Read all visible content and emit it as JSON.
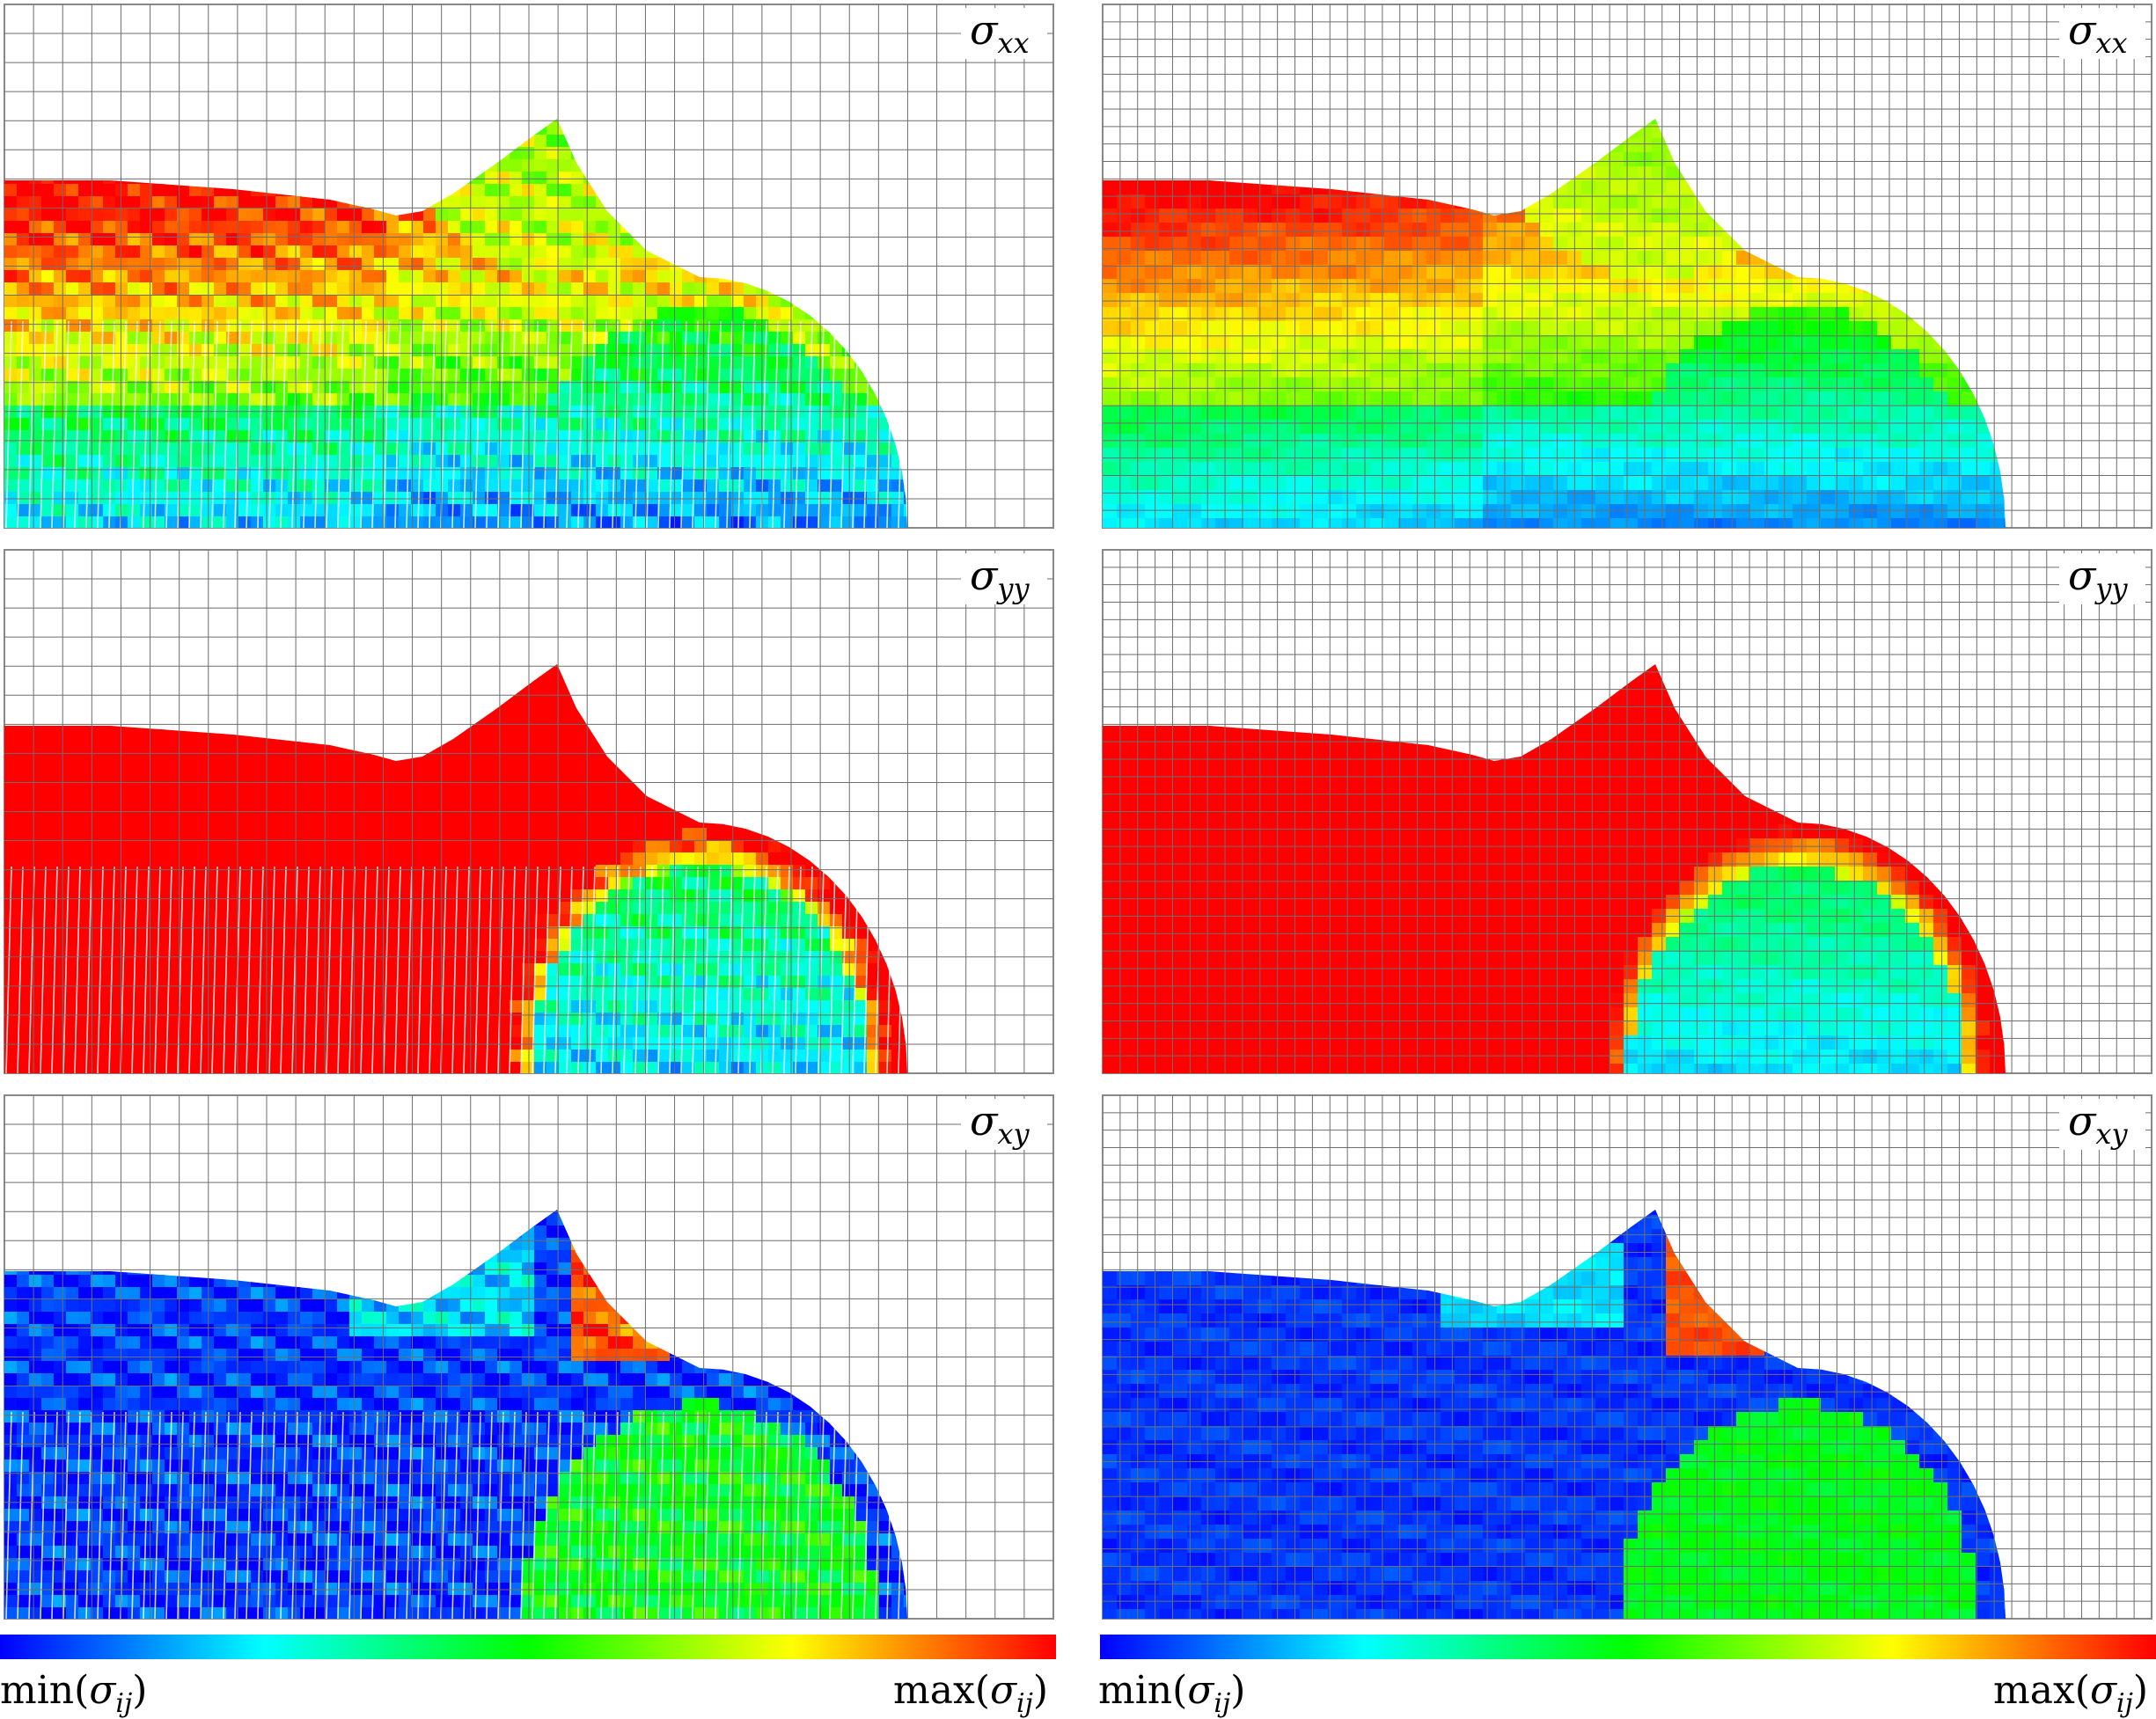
{
  "panels": [
    {
      "column": "left",
      "row": 0,
      "component": "xx",
      "label": "σ",
      "sub": "xx",
      "style": "noisy"
    },
    {
      "column": "right",
      "row": 0,
      "component": "xx",
      "label": "σ",
      "sub": "xx",
      "style": "smooth"
    },
    {
      "column": "left",
      "row": 1,
      "component": "yy",
      "label": "σ",
      "sub": "yy",
      "style": "noisy"
    },
    {
      "column": "right",
      "row": 1,
      "component": "yy",
      "label": "σ",
      "sub": "yy",
      "style": "smooth"
    },
    {
      "column": "left",
      "row": 2,
      "component": "xy",
      "label": "σ",
      "sub": "xy",
      "style": "noisy"
    },
    {
      "column": "right",
      "row": 2,
      "component": "xy",
      "label": "σ",
      "sub": "xy",
      "style": "smooth"
    }
  ],
  "colorbar": {
    "colors": [
      "#0000ff",
      "#00ffff",
      "#00ff00",
      "#ffff00",
      "#ff0000"
    ],
    "min_label": {
      "func": "min(",
      "sym": "σ",
      "sub": "ij",
      "close": ")"
    },
    "max_label": {
      "func": "max(",
      "sym": "σ",
      "sub": "ij",
      "close": ")"
    }
  }
}
